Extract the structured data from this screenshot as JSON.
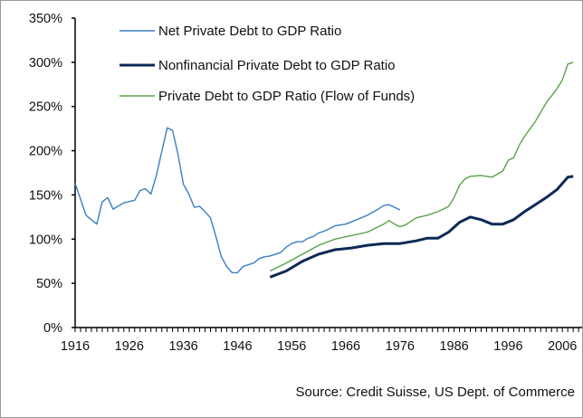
{
  "chart_data": {
    "type": "line",
    "title": "",
    "xlabel": "",
    "ylabel": "",
    "xlim": [
      1916,
      2009
    ],
    "ylim": [
      0,
      350
    ],
    "x_ticks": [
      "1916",
      "1926",
      "1936",
      "1946",
      "1956",
      "1966",
      "1976",
      "1986",
      "1996",
      "2006"
    ],
    "y_ticks": [
      "0%",
      "50%",
      "100%",
      "150%",
      "200%",
      "250%",
      "300%",
      "350%"
    ],
    "grid": false,
    "legend_position": "top-left",
    "source": "Source: Credit Suisse, US Dept. of Commerce",
    "series": [
      {
        "name": "Net Private Debt to GDP Ratio",
        "color": "#3a7fc4",
        "points": [
          [
            1916,
            163
          ],
          [
            1918,
            127
          ],
          [
            1920,
            117
          ],
          [
            1921,
            142
          ],
          [
            1922,
            147
          ],
          [
            1923,
            134
          ],
          [
            1925,
            141
          ],
          [
            1927,
            144
          ],
          [
            1928,
            155
          ],
          [
            1929,
            157
          ],
          [
            1930,
            151
          ],
          [
            1931,
            172
          ],
          [
            1932,
            199
          ],
          [
            1933,
            226
          ],
          [
            1934,
            223
          ],
          [
            1935,
            196
          ],
          [
            1936,
            162
          ],
          [
            1937,
            151
          ],
          [
            1938,
            136
          ],
          [
            1939,
            137
          ],
          [
            1940,
            131
          ],
          [
            1941,
            124
          ],
          [
            1942,
            103
          ],
          [
            1943,
            80
          ],
          [
            1944,
            69
          ],
          [
            1945,
            62
          ],
          [
            1946,
            62
          ],
          [
            1947,
            69
          ],
          [
            1948,
            71
          ],
          [
            1949,
            73
          ],
          [
            1950,
            78
          ],
          [
            1951,
            80
          ],
          [
            1952,
            81
          ],
          [
            1953,
            83
          ],
          [
            1954,
            85
          ],
          [
            1955,
            91
          ],
          [
            1956,
            95
          ],
          [
            1957,
            97
          ],
          [
            1958,
            97
          ],
          [
            1959,
            101
          ],
          [
            1960,
            103
          ],
          [
            1961,
            107
          ],
          [
            1962,
            109
          ],
          [
            1963,
            112
          ],
          [
            1964,
            115
          ],
          [
            1966,
            117
          ],
          [
            1968,
            122
          ],
          [
            1970,
            127
          ],
          [
            1972,
            134
          ],
          [
            1973,
            138
          ],
          [
            1974,
            139
          ],
          [
            1975,
            136
          ],
          [
            1976,
            133
          ]
        ]
      },
      {
        "name": "Nonfinancial Private Debt to GDP Ratio",
        "color": "#0d2a55",
        "points": [
          [
            1952,
            57
          ],
          [
            1955,
            64
          ],
          [
            1958,
            75
          ],
          [
            1961,
            83
          ],
          [
            1964,
            88
          ],
          [
            1967,
            90
          ],
          [
            1970,
            93
          ],
          [
            1973,
            95
          ],
          [
            1976,
            95
          ],
          [
            1979,
            98
          ],
          [
            1981,
            101
          ],
          [
            1983,
            101
          ],
          [
            1985,
            108
          ],
          [
            1987,
            119
          ],
          [
            1989,
            125
          ],
          [
            1991,
            122
          ],
          [
            1993,
            117
          ],
          [
            1995,
            117
          ],
          [
            1997,
            122
          ],
          [
            1999,
            131
          ],
          [
            2001,
            139
          ],
          [
            2003,
            147
          ],
          [
            2005,
            156
          ],
          [
            2007,
            170
          ],
          [
            2008,
            171
          ]
        ]
      },
      {
        "name": "Private Debt to GDP Ratio (Flow of Funds)",
        "color": "#5aa04a",
        "points": [
          [
            1952,
            64
          ],
          [
            1955,
            73
          ],
          [
            1958,
            83
          ],
          [
            1961,
            93
          ],
          [
            1964,
            100
          ],
          [
            1967,
            104
          ],
          [
            1970,
            108
          ],
          [
            1972,
            114
          ],
          [
            1973,
            117
          ],
          [
            1974,
            121
          ],
          [
            1975,
            117
          ],
          [
            1976,
            114
          ],
          [
            1977,
            116
          ],
          [
            1979,
            124
          ],
          [
            1981,
            127
          ],
          [
            1983,
            131
          ],
          [
            1985,
            137
          ],
          [
            1986,
            147
          ],
          [
            1987,
            161
          ],
          [
            1988,
            168
          ],
          [
            1989,
            171
          ],
          [
            1991,
            172
          ],
          [
            1993,
            170
          ],
          [
            1995,
            177
          ],
          [
            1996,
            189
          ],
          [
            1997,
            192
          ],
          [
            1998,
            206
          ],
          [
            1999,
            216
          ],
          [
            2001,
            233
          ],
          [
            2003,
            254
          ],
          [
            2005,
            270
          ],
          [
            2006,
            280
          ],
          [
            2007,
            298
          ],
          [
            2008,
            300
          ]
        ]
      }
    ]
  }
}
